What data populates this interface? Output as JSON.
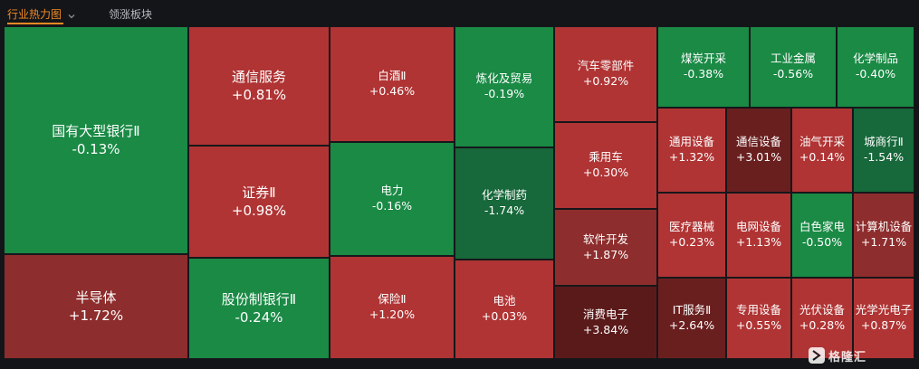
{
  "tabs": [
    {
      "label": "行业热力图",
      "active": true
    },
    {
      "label": "领涨板块",
      "active": false
    }
  ],
  "colors": {
    "background": "#141519",
    "accent": "#f08a24",
    "up": "#b03434",
    "down": "#1a8a45"
  },
  "watermark": "格隆汇",
  "chart_data": {
    "type": "treemap",
    "unit": "%",
    "tiles": [
      {
        "name": "国有大型银行Ⅱ",
        "change": -0.13,
        "label": "-0.13%"
      },
      {
        "name": "半导体",
        "change": 1.72,
        "label": "+1.72%"
      },
      {
        "name": "通信服务",
        "change": 0.81,
        "label": "+0.81%"
      },
      {
        "name": "证券Ⅱ",
        "change": 0.98,
        "label": "+0.98%"
      },
      {
        "name": "股份制银行Ⅱ",
        "change": -0.24,
        "label": "-0.24%"
      },
      {
        "name": "白酒Ⅱ",
        "change": 0.46,
        "label": "+0.46%"
      },
      {
        "name": "电力",
        "change": -0.16,
        "label": "-0.16%"
      },
      {
        "name": "保险Ⅱ",
        "change": 1.2,
        "label": "+1.20%"
      },
      {
        "name": "炼化及贸易",
        "change": -0.19,
        "label": "-0.19%"
      },
      {
        "name": "化学制药",
        "change": -1.74,
        "label": "-1.74%"
      },
      {
        "name": "电池",
        "change": 0.03,
        "label": "+0.03%"
      },
      {
        "name": "汽车零部件",
        "change": 0.92,
        "label": "+0.92%"
      },
      {
        "name": "乘用车",
        "change": 0.3,
        "label": "+0.30%"
      },
      {
        "name": "软件开发",
        "change": 1.87,
        "label": "+1.87%"
      },
      {
        "name": "消费电子",
        "change": 3.84,
        "label": "+3.84%"
      },
      {
        "name": "煤炭开采",
        "change": -0.38,
        "label": "-0.38%"
      },
      {
        "name": "工业金属",
        "change": -0.56,
        "label": "-0.56%"
      },
      {
        "name": "化学制品",
        "change": -0.4,
        "label": "-0.40%"
      },
      {
        "name": "通用设备",
        "change": 1.32,
        "label": "+1.32%"
      },
      {
        "name": "通信设备",
        "change": 3.01,
        "label": "+3.01%"
      },
      {
        "name": "油气开采",
        "change": 0.14,
        "label": "+0.14%"
      },
      {
        "name": "城商行Ⅱ",
        "change": -1.54,
        "label": "-1.54%"
      },
      {
        "name": "医疗器械",
        "change": 0.23,
        "label": "+0.23%"
      },
      {
        "name": "电网设备",
        "change": 1.13,
        "label": "+1.13%"
      },
      {
        "name": "白色家电",
        "change": -0.5,
        "label": "-0.50%"
      },
      {
        "name": "计算机设备",
        "change": 1.71,
        "label": "+1.71%"
      },
      {
        "name": "IT服务Ⅱ",
        "change": 2.64,
        "label": "+2.64%"
      },
      {
        "name": "专用设备",
        "change": 0.55,
        "label": "+0.55%"
      },
      {
        "name": "光伏设备",
        "change": 0.28,
        "label": "+0.28%"
      },
      {
        "name": "光学光电子",
        "change": 0.87,
        "label": "+0.87%"
      }
    ]
  }
}
